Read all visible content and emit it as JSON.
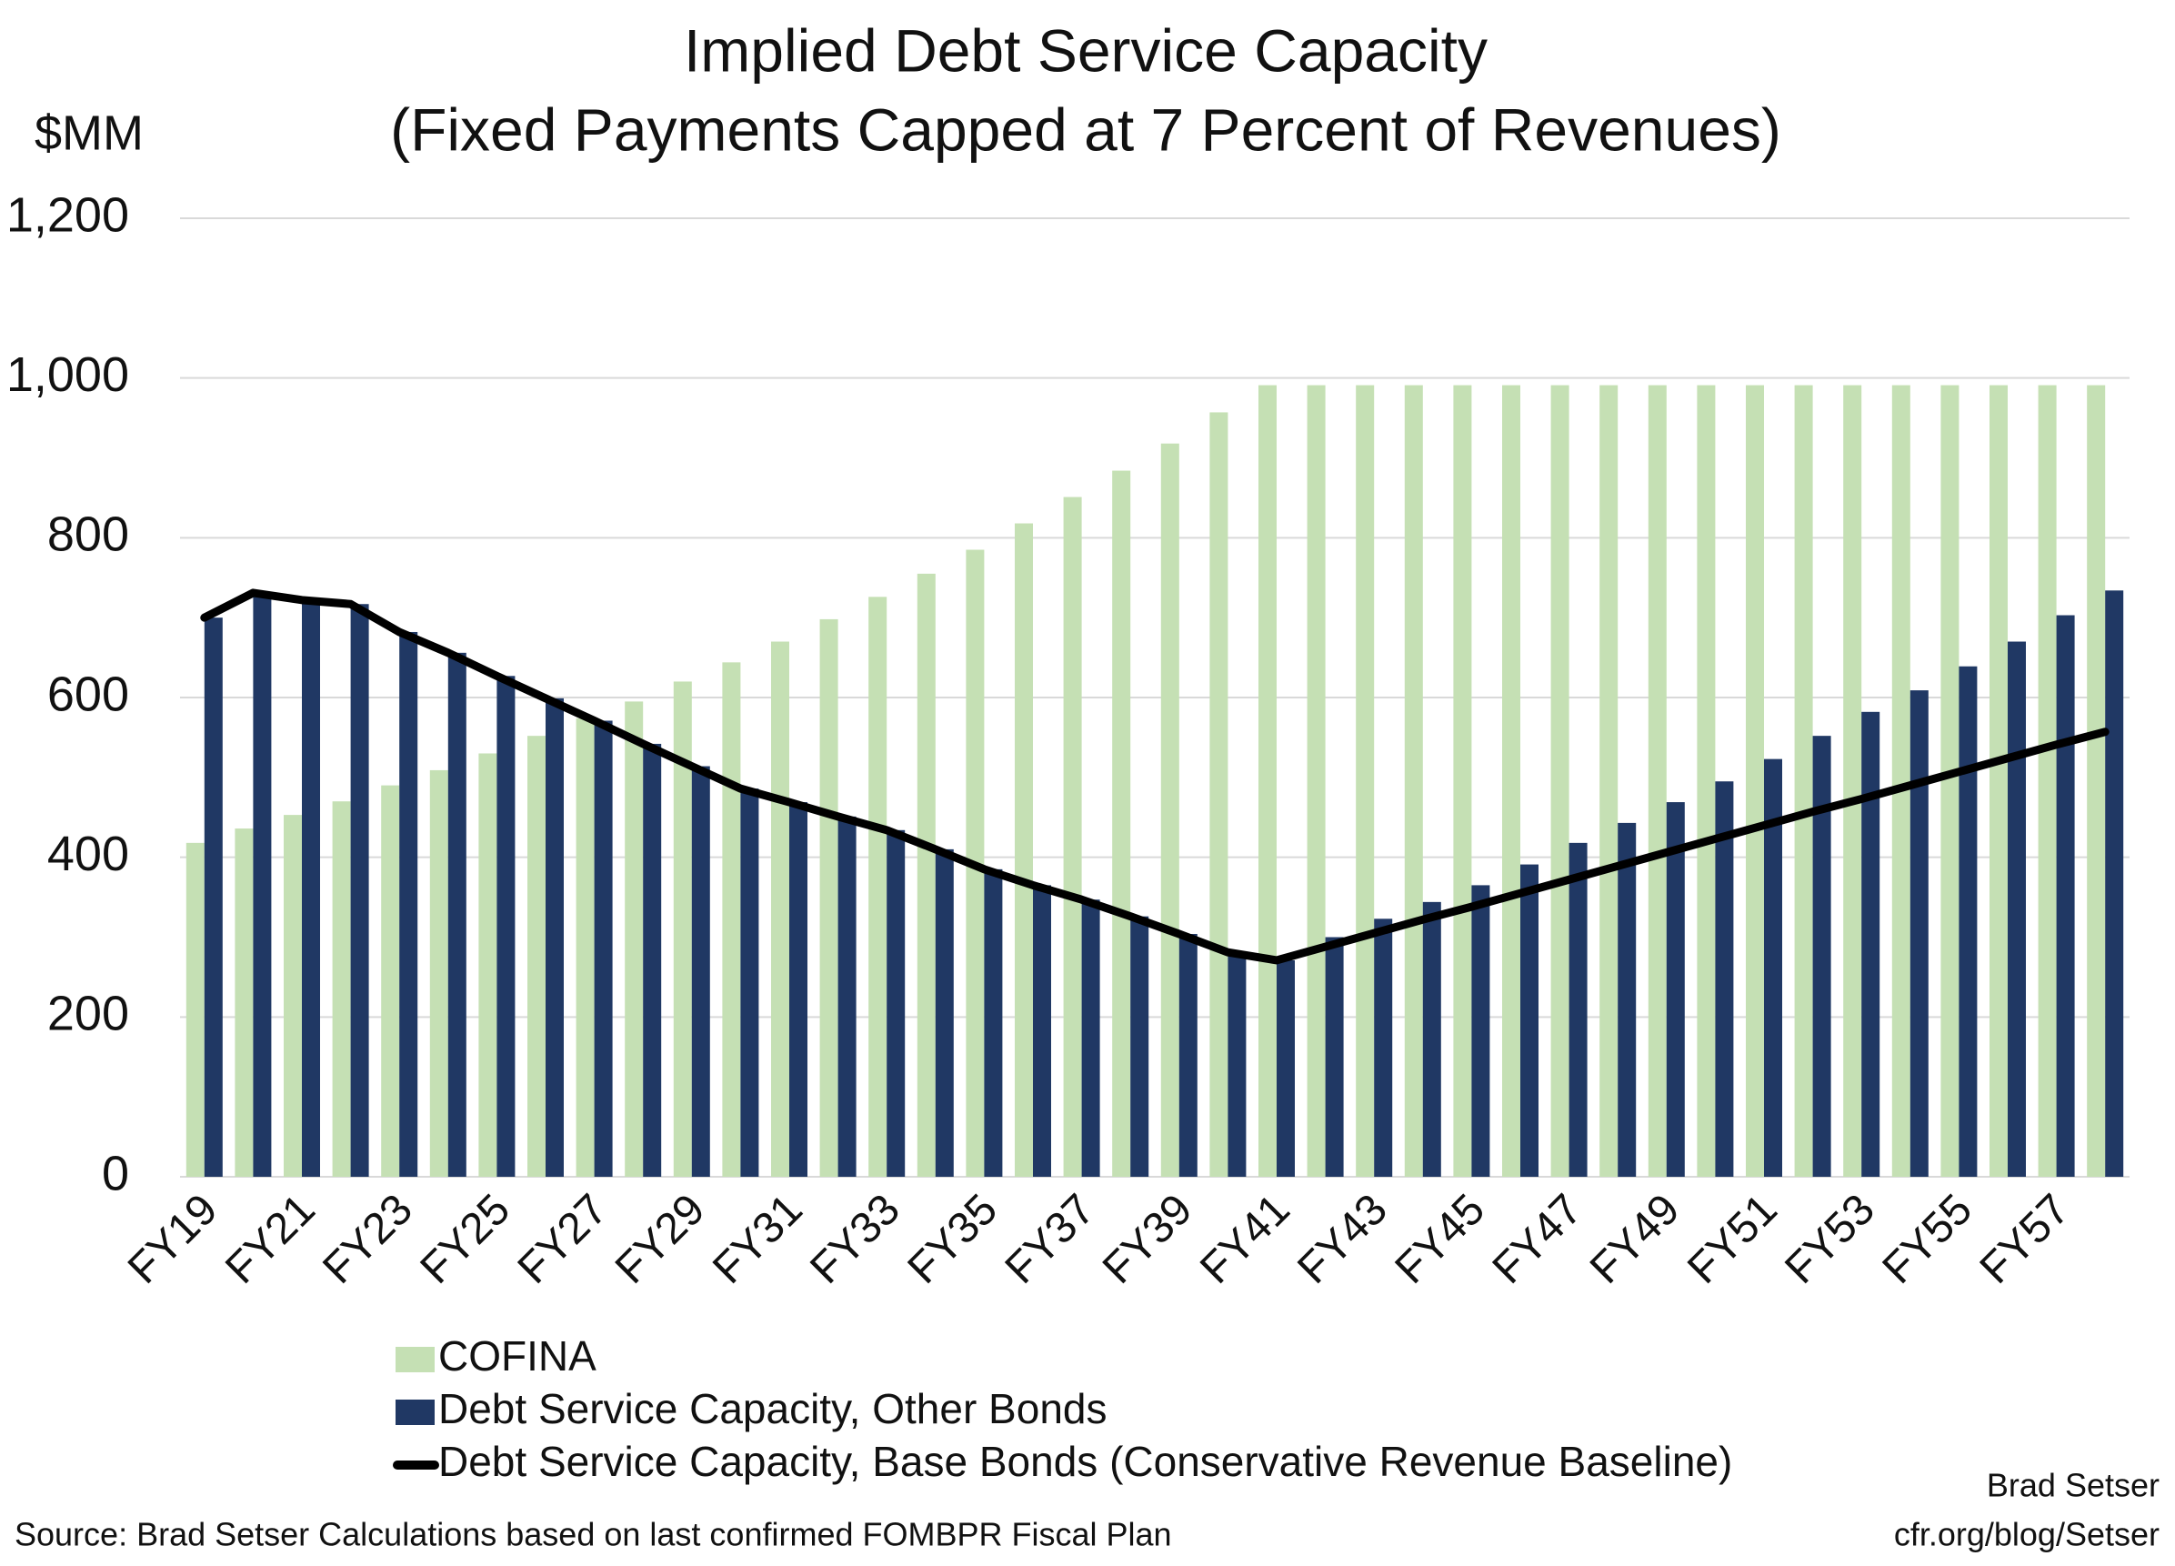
{
  "chart_data": {
    "type": "bar",
    "title": "Implied Debt Service Capacity",
    "subtitle": "(Fixed Payments Capped at 7 Percent of Revenues)",
    "y_label": "$MM",
    "categories": [
      "FY19",
      null,
      "FY21",
      null,
      "FY23",
      null,
      "FY25",
      null,
      "FY27",
      null,
      "FY29",
      null,
      "FY31",
      null,
      "FY33",
      null,
      "FY35",
      null,
      "FY37",
      null,
      "FY39",
      null,
      "FY41",
      null,
      "FY43",
      null,
      "FY45",
      null,
      "FY47",
      null,
      "FY49",
      null,
      "FY51",
      null,
      "FY53",
      null,
      "FY55",
      null,
      "FY57",
      null
    ],
    "series": [
      {
        "name": "COFINA",
        "type": "bar",
        "color": "#c5e0b4",
        "values": [
          418,
          436,
          453,
          470,
          490,
          509,
          530,
          552,
          574,
          595,
          620,
          644,
          670,
          698,
          726,
          755,
          785,
          818,
          851,
          884,
          918,
          957,
          991,
          991,
          991,
          991,
          991,
          991,
          991,
          991,
          991,
          991,
          991,
          991,
          991,
          991,
          991,
          991,
          991,
          991
        ]
      },
      {
        "name": "Debt Service Capacity, Other Bonds",
        "type": "bar",
        "color": "#203864",
        "values": [
          700,
          731,
          722,
          717,
          682,
          656,
          627,
          599,
          571,
          542,
          514,
          486,
          469,
          451,
          434,
          410,
          385,
          365,
          347,
          326,
          304,
          281,
          271,
          300,
          323,
          344,
          365,
          391,
          418,
          443,
          469,
          495,
          523,
          552,
          582,
          609,
          639,
          670,
          703,
          734
        ]
      },
      {
        "name": "Debt Service Capacity, Base Bonds (Conservative Revenue Baseline)",
        "type": "line",
        "color": "#000000",
        "values": [
          700,
          731,
          722,
          717,
          682,
          656,
          627,
          599,
          571,
          542,
          514,
          486,
          469,
          451,
          434,
          410,
          385,
          365,
          347,
          326,
          304,
          281,
          271,
          288,
          305,
          322,
          338,
          355,
          372,
          389,
          406,
          423,
          440,
          457,
          473,
          490,
          507,
          524,
          541,
          557
        ]
      }
    ],
    "ylim": [
      0,
      1200
    ],
    "yticks": [
      0,
      200,
      400,
      600,
      800,
      {
        "value": 1000,
        "label": "1,000"
      },
      {
        "value": 1200,
        "label": "1,200"
      }
    ],
    "grid": true,
    "annotations": [
      "Source: Brad Setser Calculations based on last confirmed FOMBPR Fiscal Plan",
      "Brad Setser",
      "cfr.org/blog/Setser"
    ]
  }
}
